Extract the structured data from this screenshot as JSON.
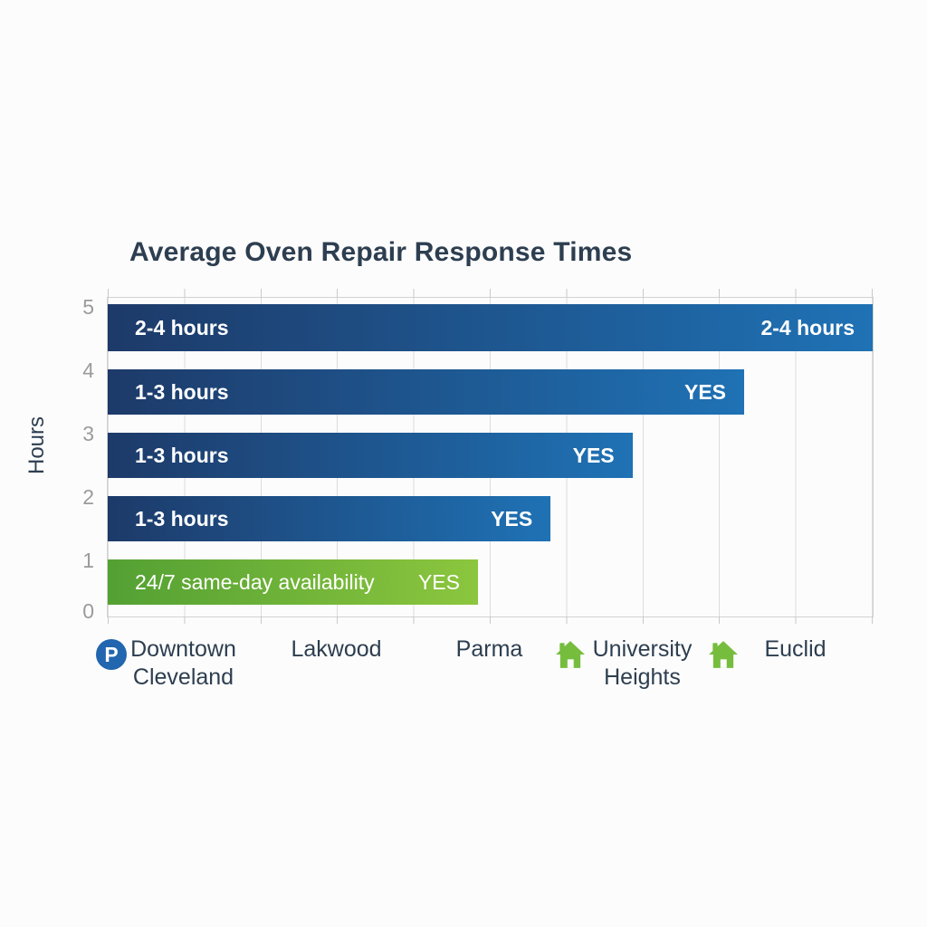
{
  "chart_data": {
    "type": "bar",
    "orientation": "horizontal",
    "title": "Average Oven Repair Response Times",
    "ylabel": "Hours",
    "grid": true,
    "legend": false,
    "y_ticks": [
      "5",
      "4",
      "3",
      "2",
      "1",
      "0"
    ],
    "y_range": [
      0,
      5
    ],
    "bars": [
      {
        "left_label": "2-4 hours",
        "right_label": "2-4 hours",
        "width_pct": 100,
        "color": "blue"
      },
      {
        "left_label": "1-3 hours",
        "right_label": "YES",
        "width_pct": 83.2,
        "color": "blue"
      },
      {
        "left_label": "1-3 hours",
        "right_label": "YES",
        "width_pct": 68.6,
        "color": "blue"
      },
      {
        "left_label": "1-3 hours",
        "right_label": "YES",
        "width_pct": 57.9,
        "color": "blue"
      },
      {
        "left_label": "24/7 same-day availability",
        "right_label": "YES",
        "width_pct": 48.4,
        "color": "green"
      }
    ],
    "categories": [
      {
        "label": "Downtown Cleveland",
        "line1": "Downtown",
        "line2": "Cleveland",
        "icon": "parking-icon"
      },
      {
        "label": "Lakwood",
        "line1": "Lakwood",
        "icon": ""
      },
      {
        "label": "Parma",
        "line1": "Parma",
        "icon": ""
      },
      {
        "label": "University Heights",
        "line1": "University",
        "line2": "Heights",
        "icon": "house-icon"
      },
      {
        "label": "Euclid",
        "line1": "Euclid",
        "icon": "house-icon"
      }
    ],
    "icons": {
      "parking_glyph": "P"
    },
    "colors": {
      "bar_blue_dark": "#1d3a69",
      "bar_blue_light": "#1f72b5",
      "bar_green_dark": "#53a033",
      "bar_green_light": "#8cc63e",
      "title_text": "#2d3e50",
      "axis_tick_text": "#9b9b9b",
      "gridline": "#dcdcdc",
      "parking_icon": "#2166ae",
      "house_icon": "#76bd3e"
    }
  }
}
